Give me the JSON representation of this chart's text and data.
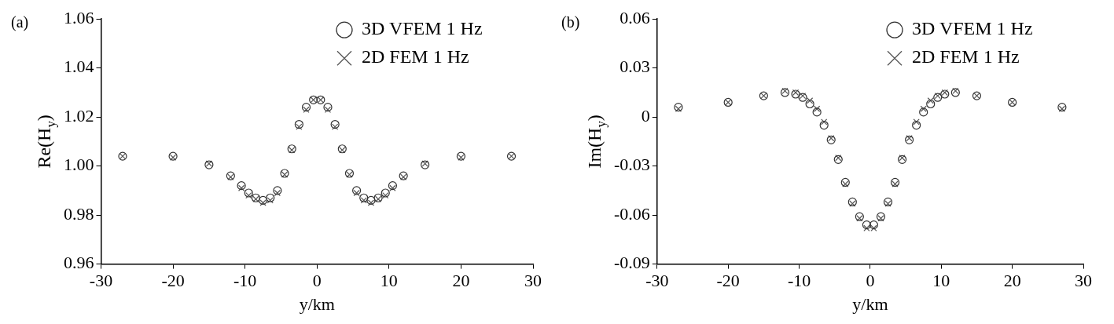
{
  "chart_data": [
    {
      "type": "scatter",
      "title": "(a)",
      "xlabel": "y/km",
      "ylabel": "Re(H$_{y}$)",
      "xlim": [
        -30,
        30
      ],
      "xticks": [
        -30,
        -20,
        -10,
        0,
        10,
        20,
        30
      ],
      "ylim": [
        0.96,
        1.06
      ],
      "yticks": [
        0.96,
        0.98,
        {
          "value": 1,
          "label": "1.00"
        },
        1.02,
        1.04,
        1.06
      ],
      "legend": "top right",
      "grid": false,
      "x": [
        -27,
        -20,
        -15,
        -12,
        -10.5,
        -9.5,
        -8.5,
        -7.5,
        -6.5,
        -5.5,
        -4.5,
        -3.5,
        -2.5,
        -1.5,
        -0.5,
        0.5,
        1.5,
        2.5,
        3.5,
        4.5,
        5.5,
        6.5,
        7.5,
        8.5,
        9.5,
        10.5,
        12,
        15,
        20,
        27
      ],
      "series": [
        {
          "name": "3D VFEM 1 Hz",
          "color": "#333333",
          "marker": "circle",
          "values": [
            1.004,
            1.004,
            1.0005,
            0.996,
            0.992,
            0.989,
            0.987,
            0.986,
            0.987,
            0.99,
            0.997,
            1.007,
            1.017,
            1.024,
            1.027,
            1.027,
            1.024,
            1.017,
            1.007,
            0.997,
            0.99,
            0.987,
            0.986,
            0.987,
            0.989,
            0.992,
            0.996,
            1.0005,
            1.004,
            1.004
          ]
        },
        {
          "name": "2D FEM 1 Hz",
          "color": "#555555",
          "marker": "cross",
          "values": [
            1.004,
            1.0035,
            1.001,
            0.9955,
            0.991,
            0.988,
            0.9865,
            0.985,
            0.986,
            0.989,
            0.9965,
            1.0065,
            1.016,
            1.023,
            1.027,
            1.027,
            1.023,
            1.016,
            1.0065,
            0.9965,
            0.989,
            0.986,
            0.985,
            0.9865,
            0.988,
            0.991,
            0.9955,
            1.001,
            1.0035,
            1.004
          ]
        }
      ]
    },
    {
      "type": "scatter",
      "title": "(b)",
      "xlabel": "y/km",
      "ylabel": "Im(H$_{y}$)",
      "xlim": [
        -30,
        30
      ],
      "xticks": [
        -30,
        -20,
        -10,
        0,
        10,
        20,
        30
      ],
      "ylim": [
        -0.09,
        0.06
      ],
      "yticks": [
        -0.09,
        -0.06,
        -0.03,
        0,
        0.03,
        0.06
      ],
      "legend": "top right",
      "grid": false,
      "x": [
        -27,
        -20,
        -15,
        -12,
        -10.5,
        -9.5,
        -8.5,
        -7.5,
        -6.5,
        -5.5,
        -4.5,
        -3.5,
        -2.5,
        -1.5,
        -0.5,
        0.5,
        1.5,
        2.5,
        3.5,
        4.5,
        5.5,
        6.5,
        7.5,
        8.5,
        9.5,
        10.5,
        12,
        15,
        20,
        27
      ],
      "series": [
        {
          "name": "3D VFEM 1 Hz",
          "color": "#333333",
          "marker": "circle",
          "values": [
            0.006,
            0.009,
            0.013,
            0.015,
            0.014,
            0.012,
            0.008,
            0.003,
            -0.005,
            -0.014,
            -0.026,
            -0.04,
            -0.052,
            -0.061,
            -0.066,
            -0.066,
            -0.061,
            -0.052,
            -0.04,
            -0.026,
            -0.014,
            -0.005,
            0.003,
            0.008,
            0.012,
            0.014,
            0.015,
            0.013,
            0.009,
            0.006
          ]
        },
        {
          "name": "2D FEM 1 Hz",
          "color": "#555555",
          "marker": "cross",
          "values": [
            0.005,
            0.009,
            0.013,
            0.016,
            0.015,
            0.013,
            0.01,
            0.005,
            -0.003,
            -0.013,
            -0.025,
            -0.041,
            -0.053,
            -0.062,
            -0.068,
            -0.068,
            -0.062,
            -0.053,
            -0.041,
            -0.025,
            -0.013,
            -0.003,
            0.005,
            0.01,
            0.013,
            0.015,
            0.016,
            0.013,
            0.009,
            0.005
          ]
        }
      ]
    }
  ]
}
